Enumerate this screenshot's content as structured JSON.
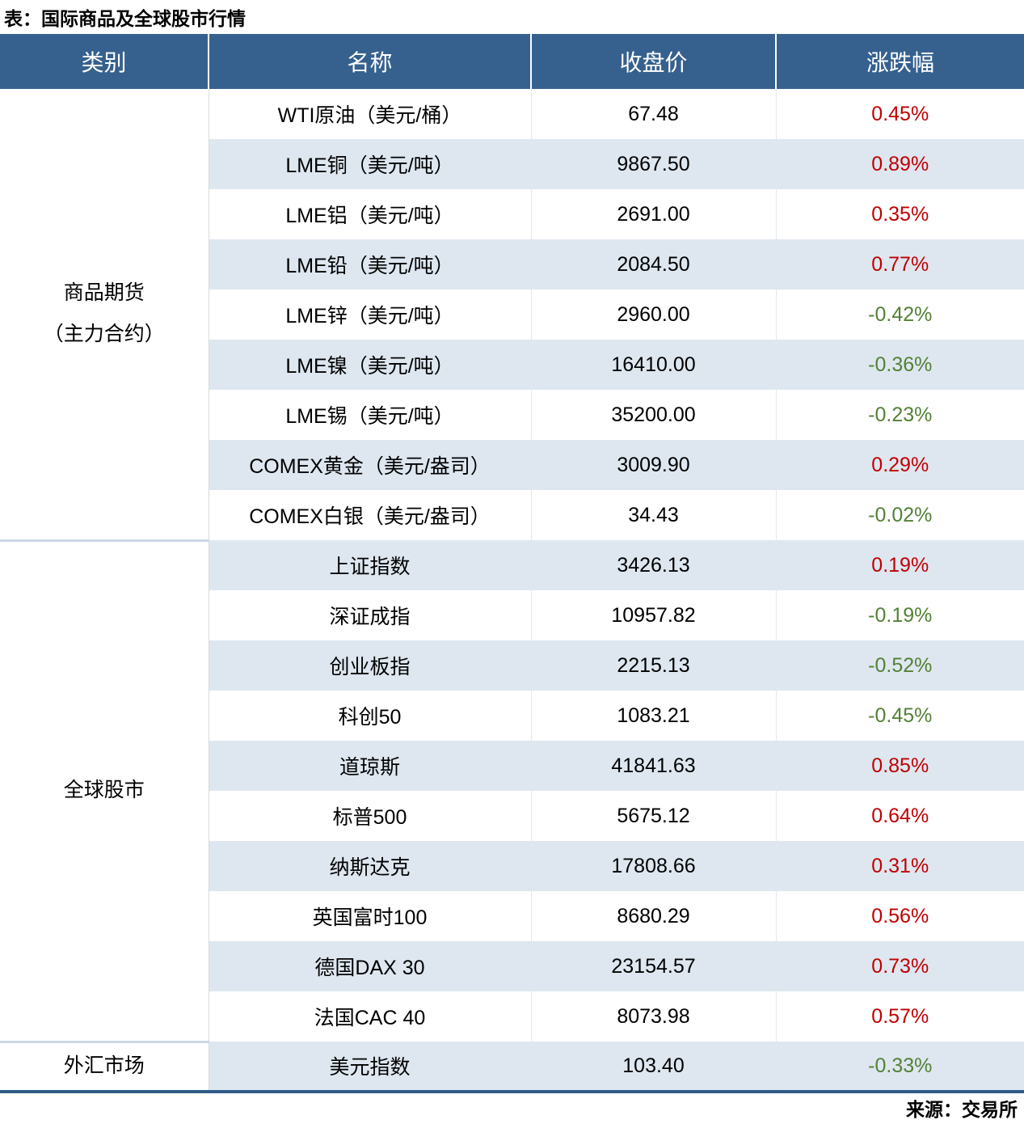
{
  "title": "表：国际商品及全球股市行情",
  "source": "来源：交易所",
  "colors": {
    "header_bg": "#36618E",
    "stripe_bg": "#DEE7F0",
    "positive": "#C00000",
    "negative": "#538135",
    "bottom_border": "#2E5B88"
  },
  "headers": [
    "类别",
    "名称",
    "收盘价",
    "涨跌幅"
  ],
  "groups": [
    {
      "label": "商品期货\n（主力合约）",
      "span": 9
    },
    {
      "label": "全球股市",
      "span": 10
    },
    {
      "label": "外汇市场",
      "span": 1
    }
  ],
  "rows": [
    {
      "name": "WTI原油（美元/桶）",
      "close": "67.48",
      "change": "0.45%",
      "sign": "pos"
    },
    {
      "name": "LME铜（美元/吨）",
      "close": "9867.50",
      "change": "0.89%",
      "sign": "pos"
    },
    {
      "name": "LME铝（美元/吨）",
      "close": "2691.00",
      "change": "0.35%",
      "sign": "pos"
    },
    {
      "name": "LME铅（美元/吨）",
      "close": "2084.50",
      "change": "0.77%",
      "sign": "pos"
    },
    {
      "name": "LME锌（美元/吨）",
      "close": "2960.00",
      "change": "-0.42%",
      "sign": "neg"
    },
    {
      "name": "LME镍（美元/吨）",
      "close": "16410.00",
      "change": "-0.36%",
      "sign": "neg"
    },
    {
      "name": "LME锡（美元/吨）",
      "close": "35200.00",
      "change": "-0.23%",
      "sign": "neg"
    },
    {
      "name": "COMEX黄金（美元/盎司）",
      "close": "3009.90",
      "change": "0.29%",
      "sign": "pos"
    },
    {
      "name": "COMEX白银（美元/盎司）",
      "close": "34.43",
      "change": "-0.02%",
      "sign": "neg"
    },
    {
      "name": "上证指数",
      "close": "3426.13",
      "change": "0.19%",
      "sign": "pos"
    },
    {
      "name": "深证成指",
      "close": "10957.82",
      "change": "-0.19%",
      "sign": "neg"
    },
    {
      "name": "创业板指",
      "close": "2215.13",
      "change": "-0.52%",
      "sign": "neg"
    },
    {
      "name": "科创50",
      "close": "1083.21",
      "change": "-0.45%",
      "sign": "neg"
    },
    {
      "name": "道琼斯",
      "close": "41841.63",
      "change": "0.85%",
      "sign": "pos"
    },
    {
      "name": "标普500",
      "close": "5675.12",
      "change": "0.64%",
      "sign": "pos"
    },
    {
      "name": "纳斯达克",
      "close": "17808.66",
      "change": "0.31%",
      "sign": "pos"
    },
    {
      "name": "英国富时100",
      "close": "8680.29",
      "change": "0.56%",
      "sign": "pos"
    },
    {
      "name": "德国DAX 30",
      "close": "23154.57",
      "change": "0.73%",
      "sign": "pos"
    },
    {
      "name": "法国CAC 40",
      "close": "8073.98",
      "change": "0.57%",
      "sign": "pos"
    },
    {
      "name": "美元指数",
      "close": "103.40",
      "change": "-0.33%",
      "sign": "neg"
    }
  ]
}
